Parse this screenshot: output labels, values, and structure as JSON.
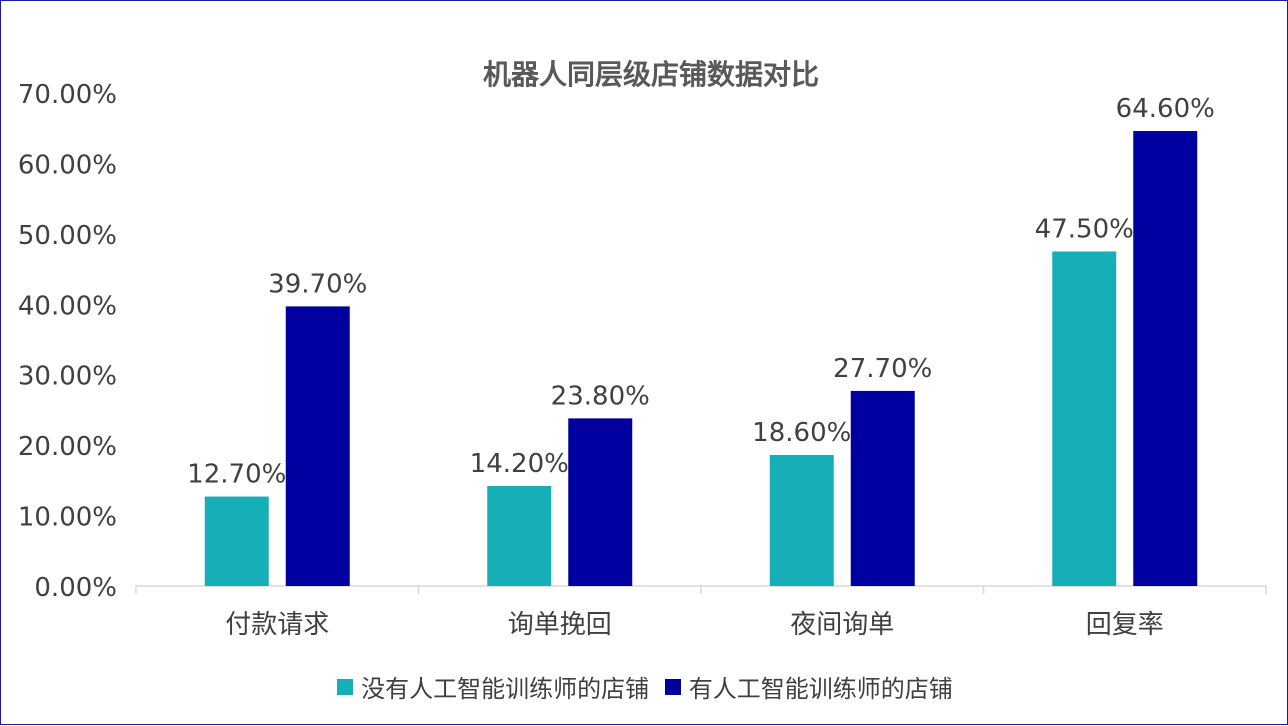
{
  "chart_data": {
    "type": "bar",
    "title": "机器人同层级店铺数据对比",
    "categories": [
      "付款请求",
      "询单挽回",
      "夜间询单",
      "回复率"
    ],
    "series": [
      {
        "name": "没有人工智能训练师的店铺",
        "values": [
          12.7,
          14.2,
          18.6,
          47.5
        ],
        "labels": [
          "12.70%",
          "14.20%",
          "18.60%",
          "47.50%"
        ],
        "color": "#17AFB7"
      },
      {
        "name": "有人工智能训练师的店铺",
        "values": [
          39.7,
          23.8,
          27.7,
          64.6
        ],
        "labels": [
          "39.70%",
          "23.80%",
          "27.70%",
          "64.60%"
        ],
        "color": "#0000A0"
      }
    ],
    "ylim": [
      0,
      70
    ],
    "yticks": [
      "0.00%",
      "10.00%",
      "20.00%",
      "30.00%",
      "40.00%",
      "50.00%",
      "60.00%",
      "70.00%"
    ],
    "grid": false,
    "legend": "bottom"
  }
}
